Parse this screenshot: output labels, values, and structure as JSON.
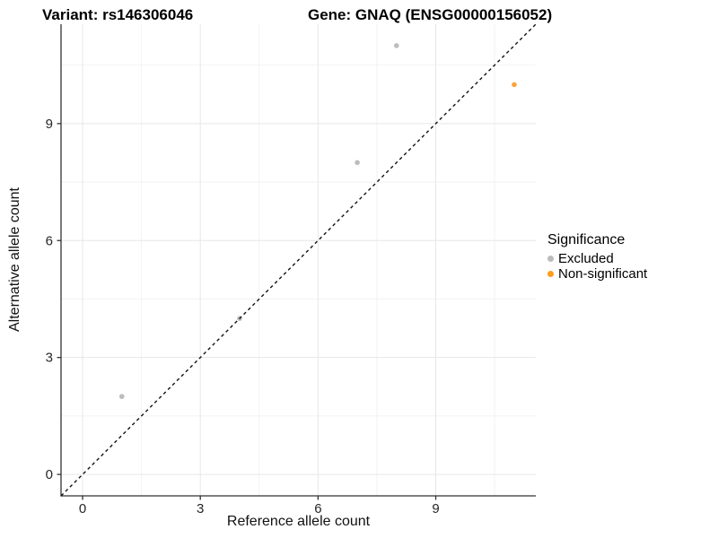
{
  "header": {
    "variant_title": "Variant: rs146306046",
    "gene_title": "Gene: GNAQ (ENSG00000156052)"
  },
  "chart_data": {
    "type": "scatter",
    "title": "Variant: rs146306046 / Gene: GNAQ (ENSG00000156052)",
    "xlabel": "Reference allele count",
    "ylabel": "Alternative allele count",
    "xlim": [
      -0.55,
      11.55
    ],
    "ylim": [
      -0.55,
      11.55
    ],
    "x_major_ticks": [
      0,
      3,
      6,
      9
    ],
    "y_major_ticks": [
      0,
      3,
      6,
      9
    ],
    "x_minor_ticks": [
      1.5,
      4.5,
      7.5,
      10.5
    ],
    "y_minor_ticks": [
      1.5,
      4.5,
      7.5,
      10.5
    ],
    "grid": true,
    "legend_position": "right",
    "identity_line": {
      "slope": 1,
      "intercept": 0,
      "style": "dashed"
    },
    "series": [
      {
        "name": "Excluded",
        "color": "#BCBCBC",
        "points": [
          [
            1,
            2
          ],
          [
            4,
            4
          ],
          [
            7,
            8
          ],
          [
            8,
            11
          ]
        ]
      },
      {
        "name": "Non-significant",
        "color": "#FCA33B",
        "points": [
          [
            11,
            10
          ]
        ]
      }
    ]
  },
  "legend": {
    "title": "Significance",
    "items": [
      {
        "label": "Excluded",
        "color": "#BCBCBC"
      },
      {
        "label": "Non-significant",
        "color": "#FF9D1C"
      }
    ]
  },
  "colors": {
    "grid_major": "#E7E7E7",
    "grid_minor": "#F2F2F2",
    "axis_line": "#333333",
    "tick_label": "#262626",
    "identity_line": "#111111",
    "background": "#FFFFFF"
  }
}
